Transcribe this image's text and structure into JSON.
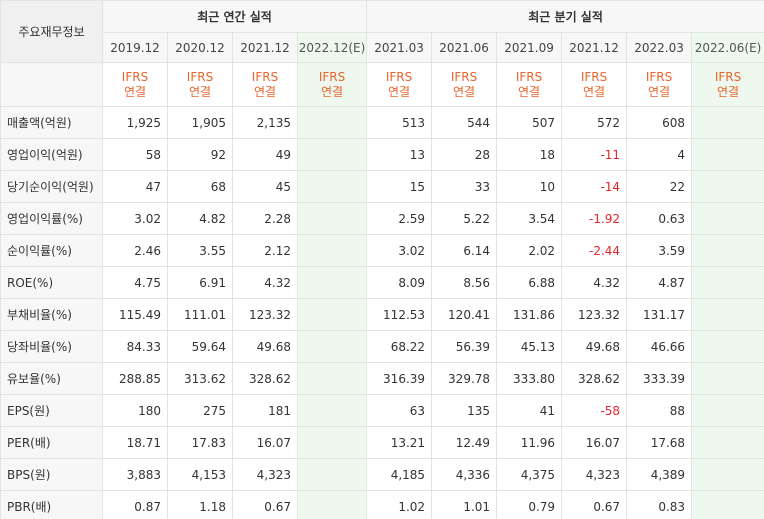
{
  "header": {
    "label": "주요재무정보",
    "annual_group": "최근 연간 실적",
    "quarter_group": "최근 분기 실적",
    "periods": [
      "2019.12",
      "2020.12",
      "2021.12",
      "2022.12(E)",
      "2021.03",
      "2021.06",
      "2021.09",
      "2021.12",
      "2022.03",
      "2022.06(E)"
    ],
    "ifrs_top": "IFRS",
    "ifrs_bottom": "연결"
  },
  "rows": [
    {
      "label": "매출액(억원)",
      "values": [
        "1,925",
        "1,905",
        "2,135",
        "",
        "513",
        "544",
        "507",
        "572",
        "608",
        ""
      ]
    },
    {
      "label": "영업이익(억원)",
      "values": [
        "58",
        "92",
        "49",
        "",
        "13",
        "28",
        "18",
        "-11",
        "4",
        ""
      ]
    },
    {
      "label": "당기순이익(억원)",
      "values": [
        "47",
        "68",
        "45",
        "",
        "15",
        "33",
        "10",
        "-14",
        "22",
        ""
      ]
    },
    {
      "label": "영업이익률(%)",
      "values": [
        "3.02",
        "4.82",
        "2.28",
        "",
        "2.59",
        "5.22",
        "3.54",
        "-1.92",
        "0.63",
        ""
      ]
    },
    {
      "label": "순이익률(%)",
      "values": [
        "2.46",
        "3.55",
        "2.12",
        "",
        "3.02",
        "6.14",
        "2.02",
        "-2.44",
        "3.59",
        ""
      ]
    },
    {
      "label": "ROE(%)",
      "values": [
        "4.75",
        "6.91",
        "4.32",
        "",
        "8.09",
        "8.56",
        "6.88",
        "4.32",
        "4.87",
        ""
      ]
    },
    {
      "label": "부채비율(%)",
      "values": [
        "115.49",
        "111.01",
        "123.32",
        "",
        "112.53",
        "120.41",
        "131.86",
        "123.32",
        "131.17",
        ""
      ]
    },
    {
      "label": "당좌비율(%)",
      "values": [
        "84.33",
        "59.64",
        "49.68",
        "",
        "68.22",
        "56.39",
        "45.13",
        "49.68",
        "46.66",
        ""
      ]
    },
    {
      "label": "유보율(%)",
      "values": [
        "288.85",
        "313.62",
        "328.62",
        "",
        "316.39",
        "329.78",
        "333.80",
        "328.62",
        "333.39",
        ""
      ]
    },
    {
      "label": "EPS(원)",
      "values": [
        "180",
        "275",
        "181",
        "",
        "63",
        "135",
        "41",
        "-58",
        "88",
        ""
      ]
    },
    {
      "label": "PER(배)",
      "values": [
        "18.71",
        "17.83",
        "16.07",
        "",
        "13.21",
        "12.49",
        "11.96",
        "16.07",
        "17.68",
        ""
      ]
    },
    {
      "label": "BPS(원)",
      "values": [
        "3,883",
        "4,153",
        "4,323",
        "",
        "4,185",
        "4,336",
        "4,375",
        "4,323",
        "4,389",
        ""
      ]
    },
    {
      "label": "PBR(배)",
      "values": [
        "0.87",
        "1.18",
        "0.67",
        "",
        "1.02",
        "1.01",
        "0.79",
        "0.67",
        "0.83",
        ""
      ]
    }
  ],
  "colors": {
    "ifrs_text": "#e8642a",
    "negative": "#e5262c",
    "estimate_bg": "#eef8ee",
    "header_bg": "#f7f7f7"
  }
}
